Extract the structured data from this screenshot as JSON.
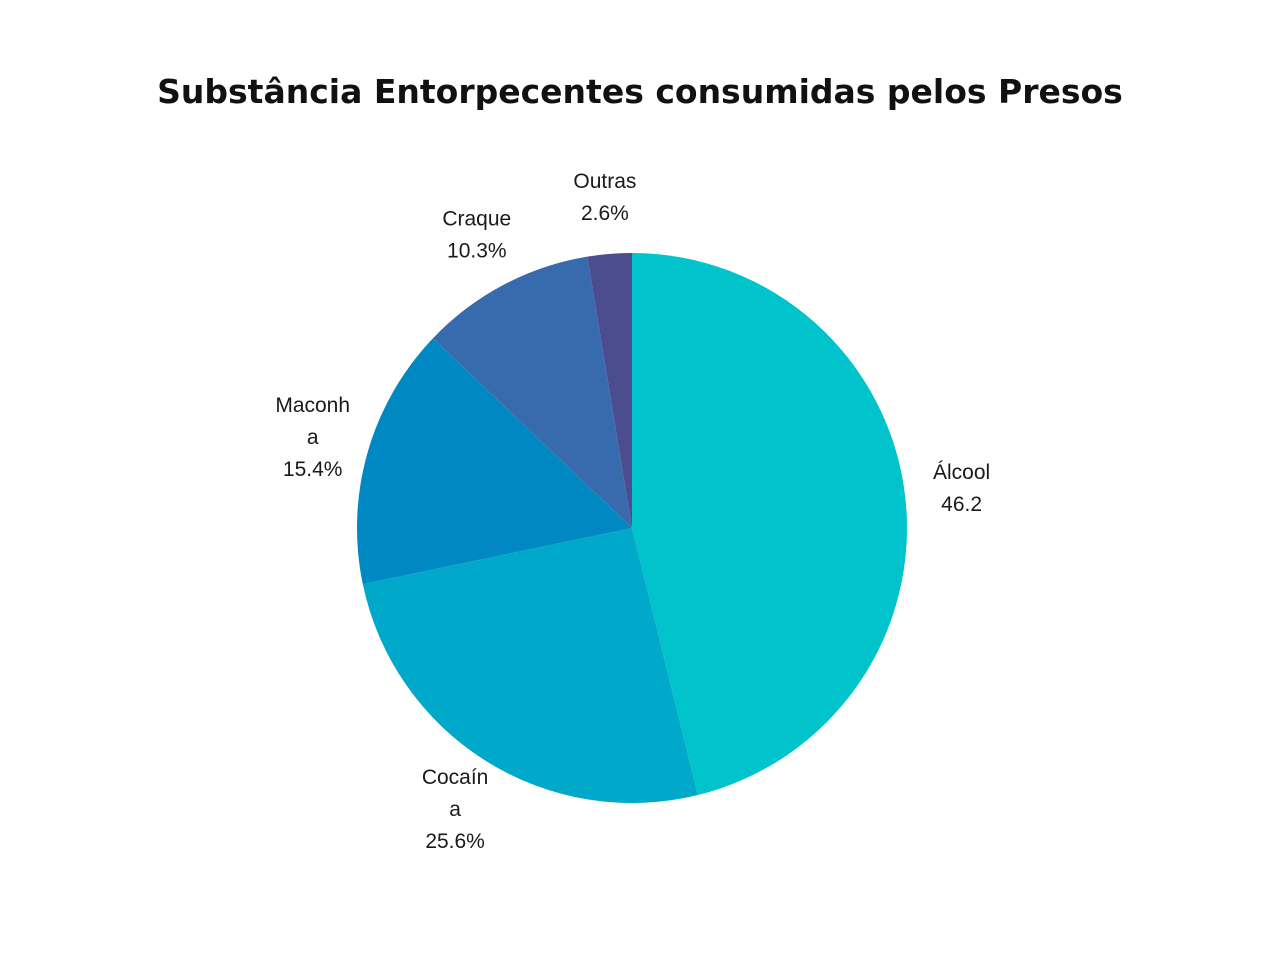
{
  "chart_data": {
    "type": "pie",
    "title": "Substância Entorpecentes consumidas pelos Presos",
    "slices": [
      {
        "name": "Álcool",
        "label_lines": [
          "Álcool",
          "46.2"
        ],
        "value": 46.2,
        "color": "#00c3cb"
      },
      {
        "name": "Cocaína",
        "label_lines": [
          "Cocaín",
          "a",
          "25.6%"
        ],
        "value": 25.6,
        "color": "#00a8ca"
      },
      {
        "name": "Maconha",
        "label_lines": [
          "Maconh",
          "a",
          "15.4%"
        ],
        "value": 15.4,
        "color": "#0088c2"
      },
      {
        "name": "Craque",
        "label_lines": [
          "Craque",
          "10.3%"
        ],
        "value": 10.3,
        "color": "#386aae"
      },
      {
        "name": "Outras",
        "label_lines": [
          "Outras",
          "2.6%"
        ],
        "value": 2.6,
        "color": "#4b4d8f"
      }
    ],
    "start": "top",
    "direction": "clockwise"
  }
}
